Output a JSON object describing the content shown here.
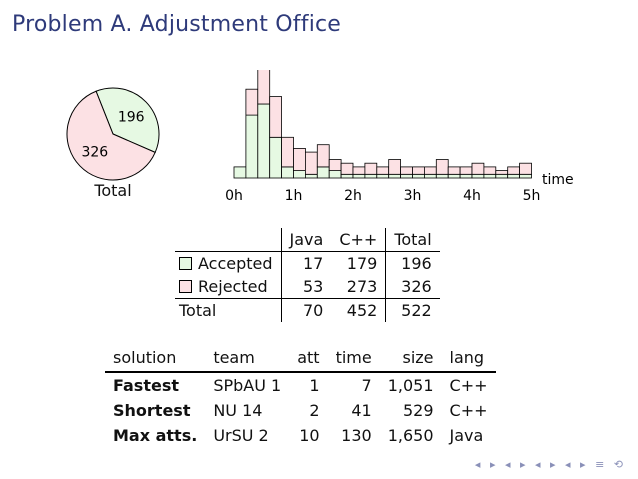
{
  "title": "Problem A. Adjustment Office",
  "colors": {
    "accepted": "#e6f9e3",
    "rejected": "#fce1e4",
    "title": "#2e3a7a"
  },
  "chart_data": [
    {
      "type": "pie",
      "label": "Total",
      "slices": [
        {
          "name": "Accepted",
          "value": 196,
          "color": "#e6f9e3"
        },
        {
          "name": "Rejected",
          "value": 326,
          "color": "#fce1e4"
        }
      ]
    },
    {
      "type": "bar",
      "stacked": true,
      "xlabel": "time",
      "x_ticks": [
        "0h",
        "1h",
        "2h",
        "3h",
        "4h",
        "5h"
      ],
      "bins_per_hour": 5,
      "series": [
        {
          "name": "Accepted",
          "color": "#e6f9e3",
          "values": [
            3,
            17,
            20,
            11,
            3,
            2,
            1,
            3,
            2,
            1,
            1,
            1,
            1,
            1,
            1,
            1,
            1,
            1,
            1,
            1,
            1,
            1,
            1,
            1,
            1
          ]
        },
        {
          "name": "Rejected",
          "color": "#fce1e4",
          "values": [
            0,
            7,
            10,
            11,
            8,
            6,
            6,
            6,
            3,
            3,
            2,
            3,
            2,
            4,
            2,
            2,
            2,
            4,
            2,
            2,
            3,
            2,
            1,
            2,
            3
          ]
        }
      ]
    }
  ],
  "summary_table": {
    "headers": [
      "",
      "Java",
      "C++",
      "Total"
    ],
    "rows": [
      {
        "label": "Accepted",
        "java": "17",
        "cpp": "179",
        "total": "196"
      },
      {
        "label": "Rejected",
        "java": "53",
        "cpp": "273",
        "total": "326"
      }
    ],
    "total_row": {
      "label": "Total",
      "java": "70",
      "cpp": "452",
      "total": "522"
    }
  },
  "solutions_table": {
    "headers": [
      "solution",
      "team",
      "att",
      "time",
      "size",
      "lang"
    ],
    "rows": [
      [
        "Fastest",
        "SPbAU 1",
        "1",
        "7",
        "1,051",
        "C++"
      ],
      [
        "Shortest",
        "NU 14",
        "2",
        "41",
        "529",
        "C++"
      ],
      [
        "Max atts.",
        "UrSU 2",
        "10",
        "130",
        "1,650",
        "Java"
      ]
    ]
  },
  "nav_symbols": "◂ ▸ ◂ ▸ ◂ ▸ ◂ ▸ ≡ ⟲"
}
